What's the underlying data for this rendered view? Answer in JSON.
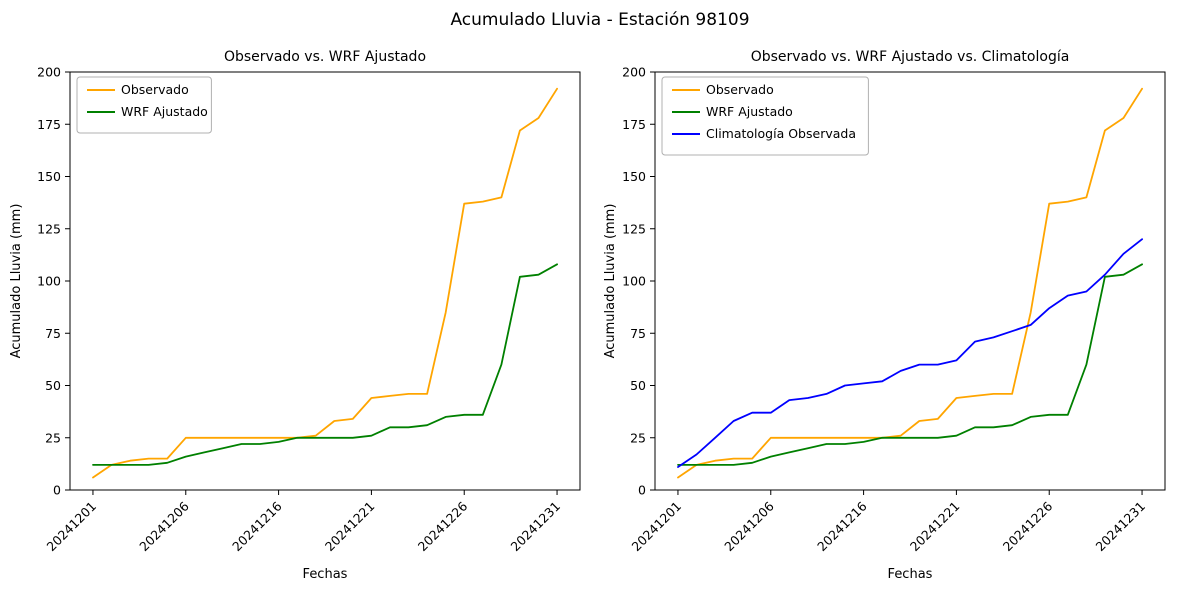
{
  "title": "Acumulado Lluvia - Estación 98109",
  "chart_data": [
    {
      "type": "line",
      "title": "Observado vs. WRF Ajustado",
      "xlabel": "Fechas",
      "ylabel": "Acumulado Lluvia (mm)",
      "ylim": [
        0,
        200
      ],
      "yticks": [
        0,
        25,
        50,
        75,
        100,
        125,
        150,
        175,
        200
      ],
      "x_ticklabels": [
        "20241201",
        "20241206",
        "20241216",
        "20241221",
        "20241226",
        "20241231"
      ],
      "x_tick_indices": [
        0,
        5,
        10,
        15,
        20,
        25
      ],
      "n_points": 26,
      "grid": false,
      "legend_position": "upper left",
      "series": [
        {
          "name": "Observado",
          "color": "#ffa500",
          "values": [
            6,
            12,
            14,
            15,
            15,
            25,
            25,
            25,
            25,
            25,
            25,
            25,
            26,
            33,
            34,
            44,
            45,
            46,
            46,
            85,
            137,
            138,
            140,
            172,
            178,
            192
          ]
        },
        {
          "name": "WRF Ajustado",
          "color": "#008000",
          "values": [
            12,
            12,
            12,
            12,
            13,
            16,
            18,
            20,
            22,
            22,
            23,
            25,
            25,
            25,
            25,
            26,
            30,
            30,
            31,
            35,
            36,
            36,
            60,
            102,
            103,
            108
          ]
        }
      ]
    },
    {
      "type": "line",
      "title": "Observado vs. WRF Ajustado vs. Climatología",
      "xlabel": "Fechas",
      "ylabel": "Acumulado Lluvia (mm)",
      "ylim": [
        0,
        200
      ],
      "yticks": [
        0,
        25,
        50,
        75,
        100,
        125,
        150,
        175,
        200
      ],
      "x_ticklabels": [
        "20241201",
        "20241206",
        "20241216",
        "20241221",
        "20241226",
        "20241231"
      ],
      "x_tick_indices": [
        0,
        5,
        10,
        15,
        20,
        25
      ],
      "n_points": 26,
      "grid": false,
      "legend_position": "upper left",
      "series": [
        {
          "name": "Observado",
          "color": "#ffa500",
          "values": [
            6,
            12,
            14,
            15,
            15,
            25,
            25,
            25,
            25,
            25,
            25,
            25,
            26,
            33,
            34,
            44,
            45,
            46,
            46,
            85,
            137,
            138,
            140,
            172,
            178,
            192
          ]
        },
        {
          "name": "WRF Ajustado",
          "color": "#008000",
          "values": [
            12,
            12,
            12,
            12,
            13,
            16,
            18,
            20,
            22,
            22,
            23,
            25,
            25,
            25,
            25,
            26,
            30,
            30,
            31,
            35,
            36,
            36,
            60,
            102,
            103,
            108
          ]
        },
        {
          "name": "Climatología Observada",
          "color": "#0000ff",
          "values": [
            11,
            17,
            25,
            33,
            37,
            37,
            43,
            44,
            46,
            50,
            51,
            52,
            57,
            60,
            60,
            62,
            71,
            73,
            76,
            79,
            87,
            93,
            95,
            103,
            113,
            120
          ]
        }
      ]
    }
  ]
}
